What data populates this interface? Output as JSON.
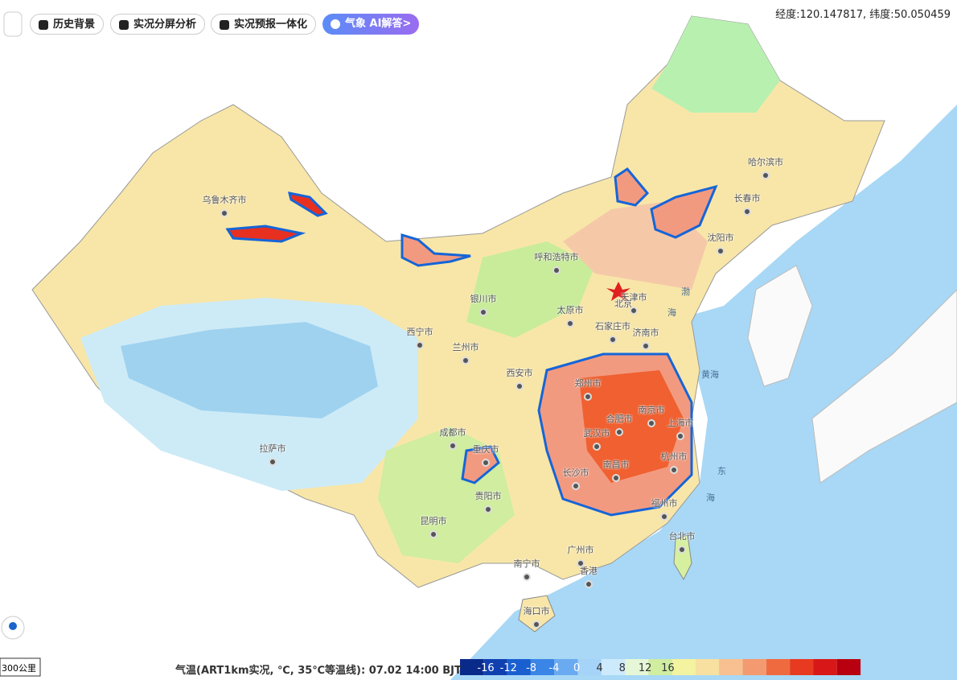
{
  "toolbar": {
    "buttons": [
      "历史背景",
      "实况分屏分析",
      "实况预报一体化",
      "气象 AI解答>"
    ]
  },
  "coordinates": "经度:120.147817, 纬度:50.050459",
  "map": {
    "cities": [
      "乌鲁木齐市",
      "哈尔滨市",
      "长春市",
      "沈阳市",
      "呼和浩特市",
      "北京",
      "天津市",
      "银川市",
      "太原市",
      "石家庄市",
      "济南市",
      "西宁市",
      "兰州市",
      "西安市",
      "郑州市",
      "合肥市",
      "南京市",
      "上海市",
      "成都市",
      "武汉市",
      "重庆市",
      "杭州市",
      "长沙市",
      "南昌市",
      "拉萨市",
      "贵阳市",
      "福州市",
      "昆明市",
      "台北市",
      "广州市",
      "南宁市",
      "香港",
      "海口市"
    ],
    "seas": [
      "渤",
      "海",
      "黄海",
      "东",
      "海"
    ]
  },
  "scale_bar": "300公里",
  "legend": {
    "title": "气温(ART1km实况, ℃, 35℃等温线): 07.02 14:00 BJT",
    "ticks": [
      "-16",
      "-12",
      "-8",
      "-4",
      "0",
      "4",
      "8",
      "12",
      "16"
    ]
  }
}
